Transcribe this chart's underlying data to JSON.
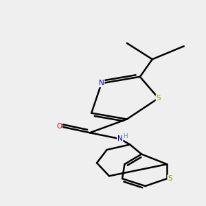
{
  "bg_color": "#efefef",
  "atom_colors": {
    "S": "#999900",
    "N": "#0000cc",
    "O": "#cc0000",
    "C": "#000000",
    "H": "#6699aa"
  },
  "bond_color": "#000000",
  "bond_width": 1.8,
  "figsize": [
    3.0,
    3.0
  ],
  "dpi": 100
}
